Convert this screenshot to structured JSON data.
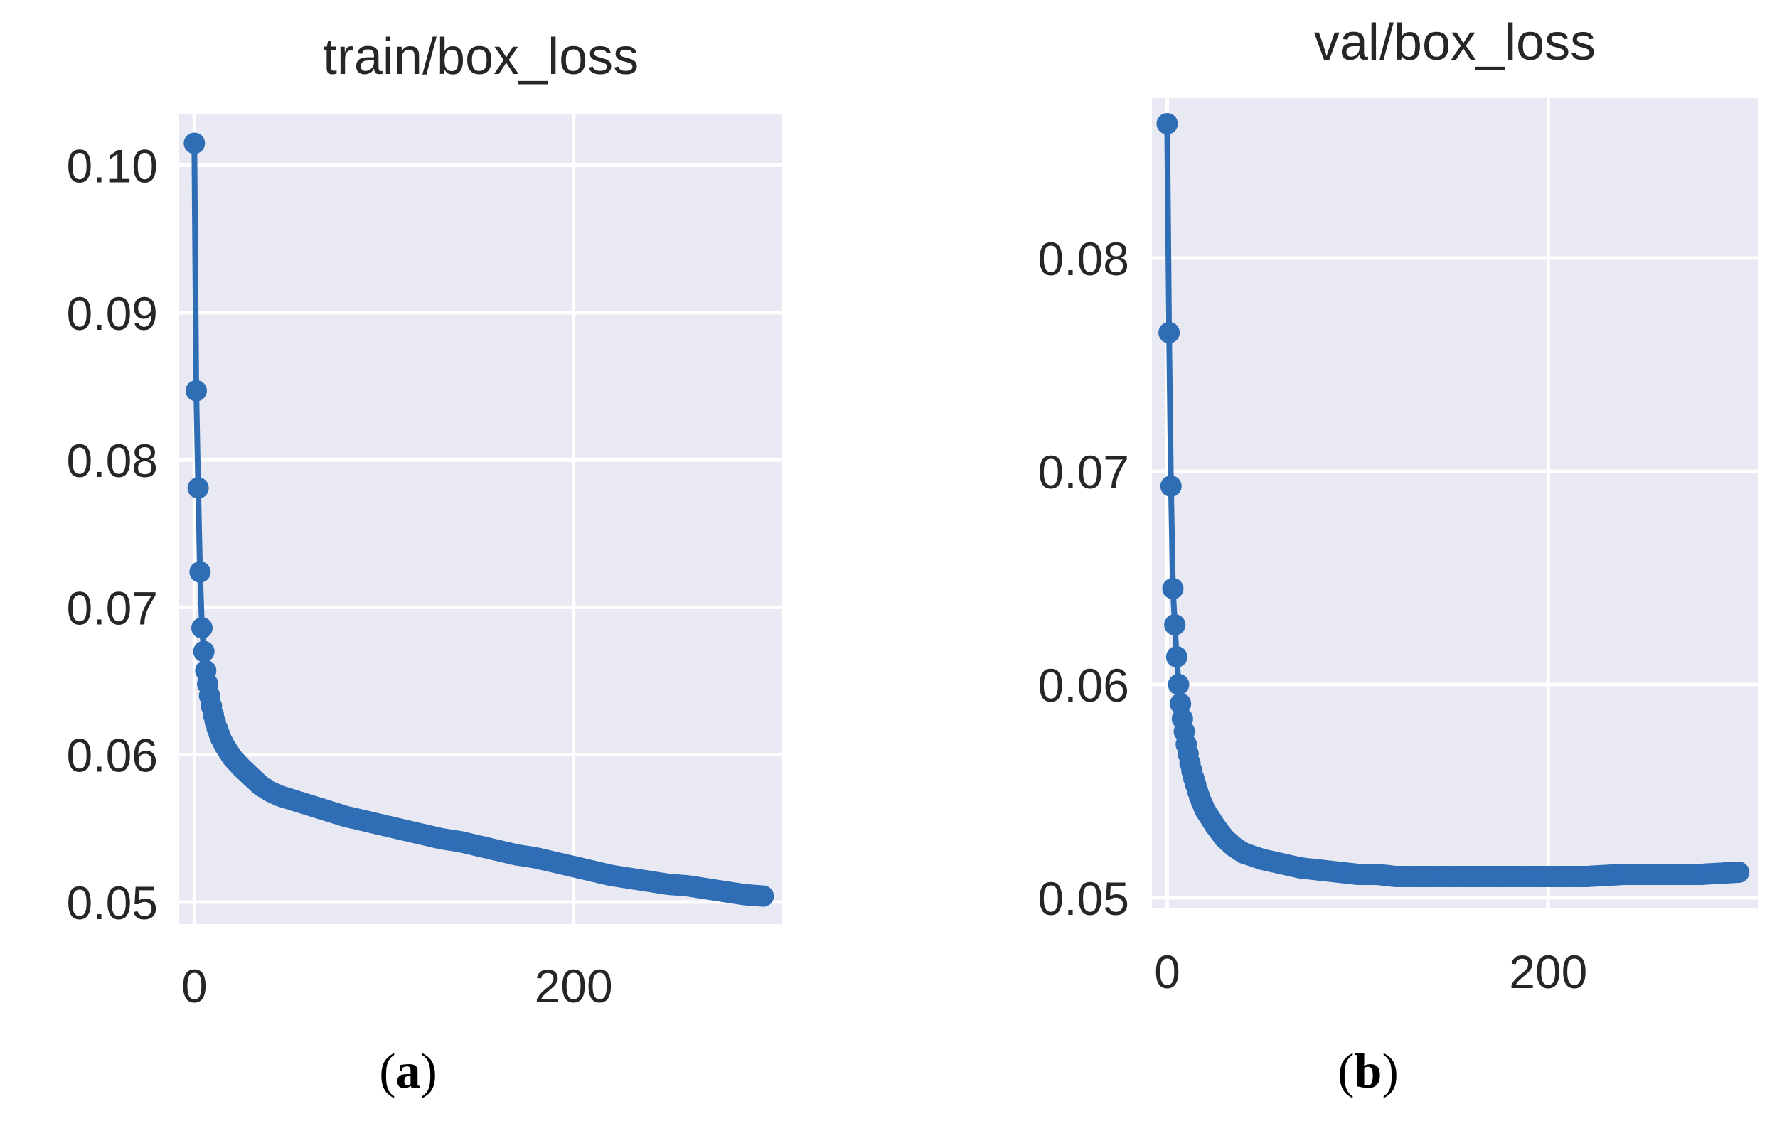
{
  "chart_data": [
    {
      "type": "line",
      "panel_label": "a",
      "title": "train/box_loss",
      "xlabel": "",
      "ylabel": "",
      "xlim": [
        -8,
        310
      ],
      "ylim": [
        0.0485,
        0.1035
      ],
      "xticks": [
        0,
        200
      ],
      "xtick_labels": [
        "0",
        "200"
      ],
      "yticks": [
        0.05,
        0.06,
        0.07,
        0.08,
        0.09,
        0.1
      ],
      "ytick_labels": [
        "0.05",
        "0.06",
        "0.07",
        "0.08",
        "0.09",
        "0.10"
      ],
      "grid": true,
      "marker": "circle",
      "series": [
        {
          "color": "#2f6db5",
          "x": [
            0,
            1,
            2,
            3,
            4,
            5,
            6,
            7,
            8,
            9,
            10,
            12,
            14,
            16,
            18,
            20,
            25,
            30,
            35,
            40,
            45,
            50,
            55,
            60,
            65,
            70,
            75,
            80,
            90,
            100,
            110,
            120,
            130,
            140,
            150,
            160,
            170,
            180,
            190,
            200,
            210,
            220,
            230,
            240,
            250,
            260,
            270,
            280,
            290,
            300
          ],
          "y": [
            0.1015,
            0.0847,
            0.0781,
            0.0724,
            0.0686,
            0.067,
            0.0657,
            0.0648,
            0.064,
            0.0633,
            0.0627,
            0.0618,
            0.0611,
            0.0606,
            0.0602,
            0.0598,
            0.0591,
            0.0585,
            0.0579,
            0.0575,
            0.0572,
            0.057,
            0.0568,
            0.0566,
            0.0564,
            0.0562,
            0.056,
            0.0558,
            0.0555,
            0.0552,
            0.0549,
            0.0546,
            0.0543,
            0.0541,
            0.0538,
            0.0535,
            0.0532,
            0.053,
            0.0527,
            0.0524,
            0.0521,
            0.0518,
            0.0516,
            0.0514,
            0.0512,
            0.0511,
            0.0509,
            0.0507,
            0.0505,
            0.0504
          ]
        }
      ]
    },
    {
      "type": "line",
      "panel_label": "b",
      "title": "val/box_loss",
      "xlabel": "",
      "ylabel": "",
      "xlim": [
        -8,
        310
      ],
      "ylim": [
        0.0495,
        0.0875
      ],
      "xticks": [
        0,
        200
      ],
      "xtick_labels": [
        "0",
        "200"
      ],
      "yticks": [
        0.05,
        0.06,
        0.07,
        0.08
      ],
      "ytick_labels": [
        "0.05",
        "0.06",
        "0.07",
        "0.08"
      ],
      "grid": true,
      "marker": "circle",
      "series": [
        {
          "color": "#2f6db5",
          "x": [
            0,
            1,
            2,
            3,
            4,
            5,
            6,
            7,
            8,
            9,
            10,
            12,
            14,
            16,
            18,
            20,
            25,
            30,
            35,
            40,
            50,
            60,
            70,
            80,
            90,
            100,
            110,
            120,
            140,
            160,
            180,
            200,
            220,
            240,
            260,
            280,
            300
          ],
          "y": [
            0.0863,
            0.0765,
            0.0693,
            0.0645,
            0.0628,
            0.0613,
            0.06,
            0.0591,
            0.0584,
            0.0578,
            0.0572,
            0.0563,
            0.0556,
            0.055,
            0.0545,
            0.0541,
            0.0534,
            0.0528,
            0.0524,
            0.0521,
            0.0518,
            0.0516,
            0.0514,
            0.0513,
            0.0512,
            0.0511,
            0.0511,
            0.051,
            0.051,
            0.051,
            0.051,
            0.051,
            0.051,
            0.0511,
            0.0511,
            0.0511,
            0.0512
          ]
        }
      ]
    }
  ]
}
